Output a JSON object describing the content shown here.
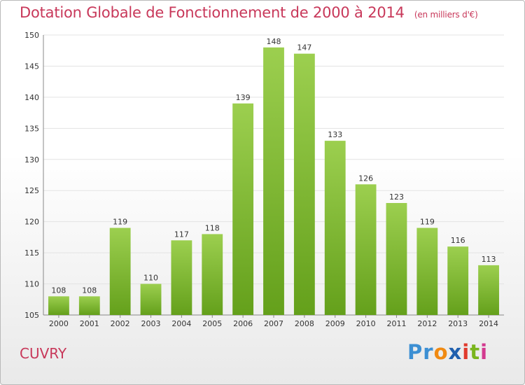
{
  "header": {
    "title": "Dotation Globale de Fonctionnement de 2000 à 2014",
    "subtitle": "(en milliers d'€)"
  },
  "footer": {
    "town": "CUVRY",
    "logo": [
      "P",
      "r",
      "o",
      "x",
      "i",
      "t",
      "i"
    ]
  },
  "colors": {
    "title": "#c8385a",
    "bar_top": "#9ccf4f",
    "bar_bottom": "#64a01b",
    "grid": "#e3e3e3",
    "logo": [
      "#3c8fd3",
      "#3c8fd3",
      "#f08a12",
      "#1f5fae",
      "#e03a2c",
      "#7ab51d",
      "#d33a8f"
    ]
  },
  "chart_data": {
    "type": "bar",
    "title": "Dotation Globale de Fonctionnement de 2000 à 2014",
    "xlabel": "",
    "ylabel": "",
    "categories": [
      "2000",
      "2001",
      "2002",
      "2003",
      "2004",
      "2005",
      "2006",
      "2007",
      "2008",
      "2009",
      "2010",
      "2011",
      "2012",
      "2013",
      "2014"
    ],
    "values": [
      108,
      108,
      119,
      110,
      117,
      118,
      139,
      148,
      147,
      133,
      126,
      123,
      119,
      116,
      113
    ],
    "ylim": [
      105,
      150
    ],
    "yticks": [
      105,
      110,
      115,
      120,
      125,
      130,
      135,
      140,
      145,
      150
    ],
    "grid": true,
    "legend": "none"
  }
}
